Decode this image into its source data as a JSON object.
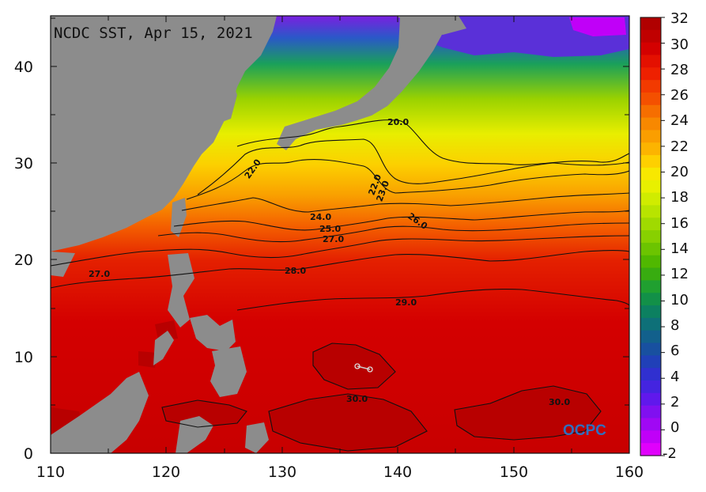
{
  "map": {
    "title": "NCDC SST, Apr 15, 2021",
    "logo": "OCPC",
    "lon_range": [
      110,
      160
    ],
    "lat_range": [
      0,
      45
    ],
    "x_ticks": [
      "110",
      "120",
      "130",
      "140",
      "150",
      "160"
    ],
    "y_ticks": [
      "0",
      "10",
      "20",
      "30",
      "40"
    ],
    "land_color": "#8c8c8c",
    "contour_labels": [
      "20.0",
      "22.0",
      "22.0",
      "23.0",
      "24.0",
      "25.0",
      "26.0",
      "27.0",
      "27.0",
      "28.0",
      "29.0",
      "30.0",
      "30.0"
    ]
  },
  "colorbar": {
    "labels": [
      "32",
      "30",
      "28",
      "26",
      "24",
      "22",
      "20",
      "18",
      "16",
      "14",
      "12",
      "10",
      "8",
      "6",
      "4",
      "2",
      "0",
      "-2"
    ],
    "colors": [
      "#b00000",
      "#c00000",
      "#d40000",
      "#e41000",
      "#ee2000",
      "#f23a00",
      "#f45000",
      "#f66e00",
      "#f88800",
      "#fa9e00",
      "#fcb400",
      "#fed000",
      "#f8e800",
      "#e8f000",
      "#d0ec00",
      "#b8e400",
      "#a0da00",
      "#88d000",
      "#6cc400",
      "#50b800",
      "#38ac10",
      "#20a030",
      "#129048",
      "#0c8060",
      "#0e7078",
      "#12608c",
      "#1850a0",
      "#2040b8",
      "#3030d0",
      "#4424e0",
      "#6018ec",
      "#8010f0",
      "#a008f4",
      "#c000f8",
      "#e000fc"
    ]
  }
}
